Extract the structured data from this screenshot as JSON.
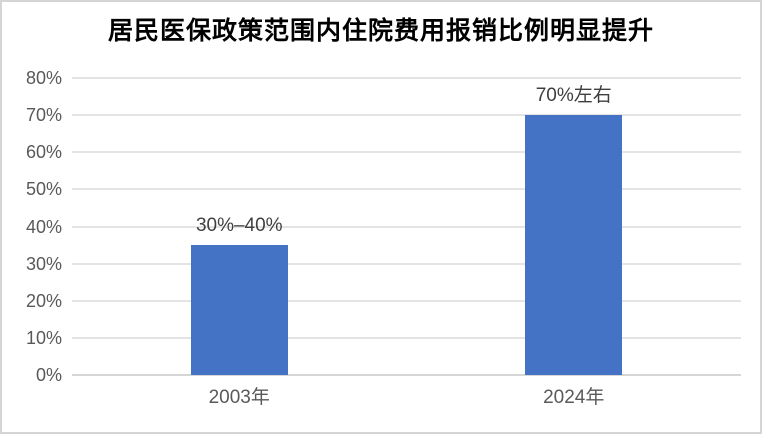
{
  "chart_data": {
    "type": "bar",
    "title": "居民医保政策范围内住院费用报销比例明显提升",
    "categories": [
      "2003年",
      "2024年"
    ],
    "values": [
      35,
      70
    ],
    "data_labels": [
      "30%–40%",
      "70%左右"
    ],
    "ylim": [
      0,
      80
    ],
    "ytick_labels": [
      "0%",
      "10%",
      "20%",
      "30%",
      "40%",
      "50%",
      "60%",
      "70%",
      "80%"
    ],
    "xlabel": "",
    "ylabel": "",
    "grid": true,
    "legend": false,
    "bar_color": "#4472C4",
    "gridline_color": "#e4e4e4",
    "axis_label_color": "#595959",
    "data_label_color": "#3f3f3f"
  }
}
